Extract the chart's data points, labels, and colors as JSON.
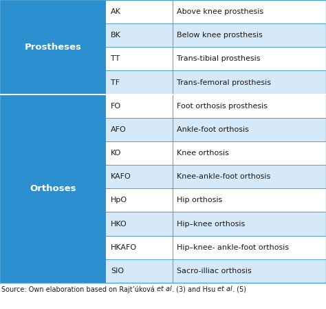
{
  "prostheses_label": "Prostheses",
  "orthoses_label": "Orthoses",
  "prostheses_rows": [
    [
      "AK",
      "Above knee prosthesis"
    ],
    [
      "BK",
      "Below knee prosthesis"
    ],
    [
      "TT",
      "Trans-tibial prosthesis"
    ],
    [
      "TF",
      "Trans-femoral prosthesis"
    ]
  ],
  "orthoses_rows": [
    [
      "FO",
      "Foot orthosis prosthesis"
    ],
    [
      "AFO",
      "Ankle-foot orthosis"
    ],
    [
      "KO",
      "Knee orthosis"
    ],
    [
      "KAFO",
      "Knee-ankle-foot orthosis"
    ],
    [
      "HpO",
      "Hip orthosis"
    ],
    [
      "HKO",
      "Hip–knee orthosis"
    ],
    [
      "HKAFO",
      "Hip–knee- ankle-foot orthosis"
    ],
    [
      "SIO",
      "Sacro-illiac orthosis"
    ]
  ],
  "color_blue_dark": "#2B8FD0",
  "color_row_white": "#FFFFFF",
  "color_row_light": "#D6E9F8",
  "color_border": "#4A9FD4",
  "color_sep": "#FFFFFF",
  "text_white": "#FFFFFF",
  "text_dark": "#1A1A1A",
  "fig_w": 4.74,
  "fig_h": 4.48,
  "dpi": 100
}
